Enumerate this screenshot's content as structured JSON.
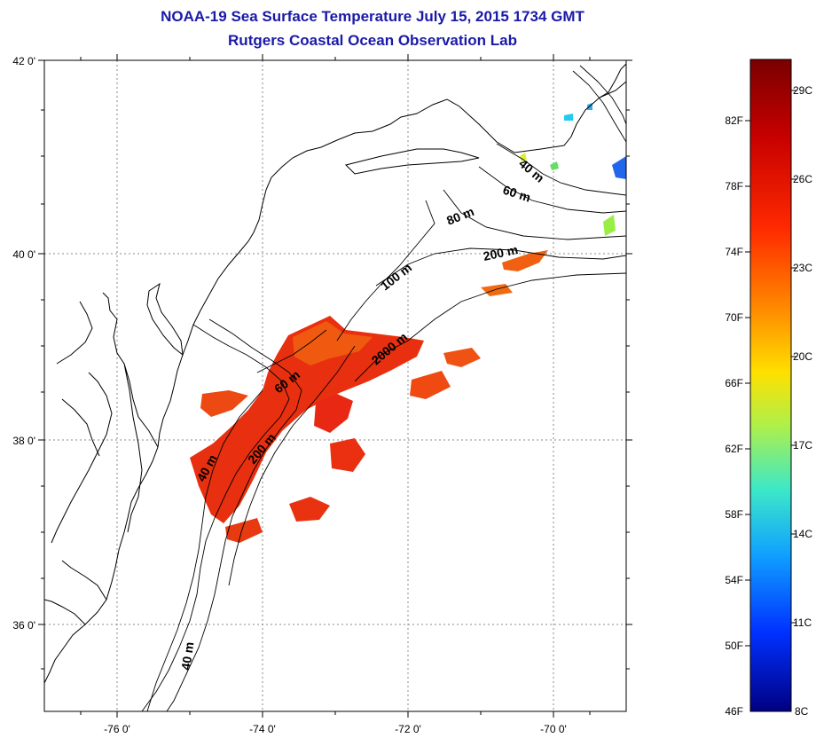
{
  "title": "NOAA-19 Sea Surface Temperature July 15, 2015 1734 GMT",
  "subtitle": "Rutgers Coastal Ocean Observation Lab",
  "axes": {
    "x_ticks": [
      "-76 0'",
      "-74 0'",
      "-72 0'",
      "-70 0'"
    ],
    "y_ticks": [
      "42 0'",
      "40 0'",
      "38 0'",
      "36 0'"
    ],
    "lon_range": [
      -77.0,
      -69.0
    ],
    "lat_range": [
      35.0,
      42.0
    ],
    "grid": "dotted"
  },
  "contour_labels": [
    "40 m",
    "60 m",
    "80 m",
    "200 m",
    "100 m",
    "2000 m",
    "60 m",
    "200 m",
    "40 m",
    "40 m"
  ],
  "colorbar": {
    "fahrenheit_labels": [
      "82F",
      "78F",
      "74F",
      "70F",
      "66F",
      "62F",
      "58F",
      "54F",
      "50F",
      "46F"
    ],
    "celsius_labels": [
      "29C",
      "26C",
      "23C",
      "20C",
      "17C",
      "14C",
      "11C",
      "8C"
    ],
    "colors": [
      "#7a0000",
      "#d40000",
      "#ff4400",
      "#ff9900",
      "#ffee00",
      "#aaff55",
      "#33ffcc",
      "#00aaff",
      "#0033ff",
      "#000088"
    ]
  }
}
